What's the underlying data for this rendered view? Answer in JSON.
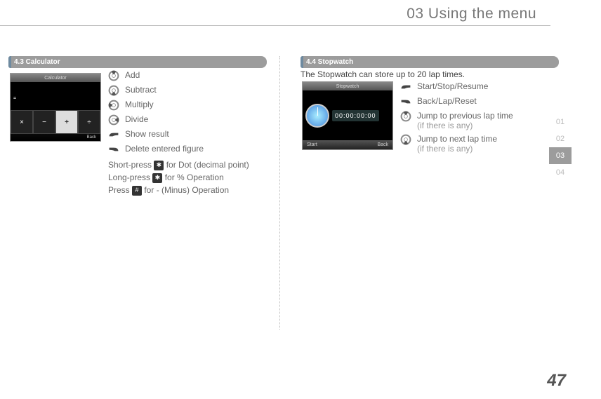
{
  "header": {
    "title": "03 Using the menu"
  },
  "tabs": [
    "01",
    "02",
    "03",
    "04"
  ],
  "active_tab": 2,
  "page_number": "47",
  "calc": {
    "section": "4.3  Calculator",
    "items": [
      {
        "icon": "dpad-up",
        "label": "Add"
      },
      {
        "icon": "dpad-down",
        "label": "Subtract"
      },
      {
        "icon": "dpad-left",
        "label": "Multiply"
      },
      {
        "icon": "dpad-right",
        "label": "Divide"
      },
      {
        "icon": "soft-left",
        "label": "Show result"
      },
      {
        "icon": "soft-right",
        "label": "Delete entered figure"
      }
    ],
    "notes": [
      {
        "pre": "Short-press ",
        "key": "✱",
        "post": " for Dot (decimal point)"
      },
      {
        "pre": "Long-press ",
        "key": "✱",
        "post": " for % Operation"
      },
      {
        "pre": "Press ",
        "key": "#",
        "post": " for - (Minus) Operation"
      }
    ],
    "screen": {
      "title": "Calculator",
      "back": "Back",
      "center": "+",
      "cells": [
        "×",
        "−",
        "÷"
      ],
      "eq": "="
    }
  },
  "stop": {
    "section": "4.4  Stopwatch",
    "intro": "The Stopwatch can store up to 20 lap times.",
    "items": [
      {
        "icon": "soft-left",
        "label": "Start/Stop/Resume",
        "sub": ""
      },
      {
        "icon": "soft-right",
        "label": "Back/Lap/Reset",
        "sub": ""
      },
      {
        "icon": "dpad-up",
        "label": "Jump to previous lap time",
        "sub": "(if there is any)"
      },
      {
        "icon": "dpad-down",
        "label": "Jump to next lap time",
        "sub": "(if there is any)"
      }
    ],
    "screen": {
      "title": "Stopwatch",
      "time": "00:00:00:00",
      "left": "Start",
      "right": "Back"
    }
  },
  "colors": {
    "tab_active_bg": "#9c9c9c"
  }
}
